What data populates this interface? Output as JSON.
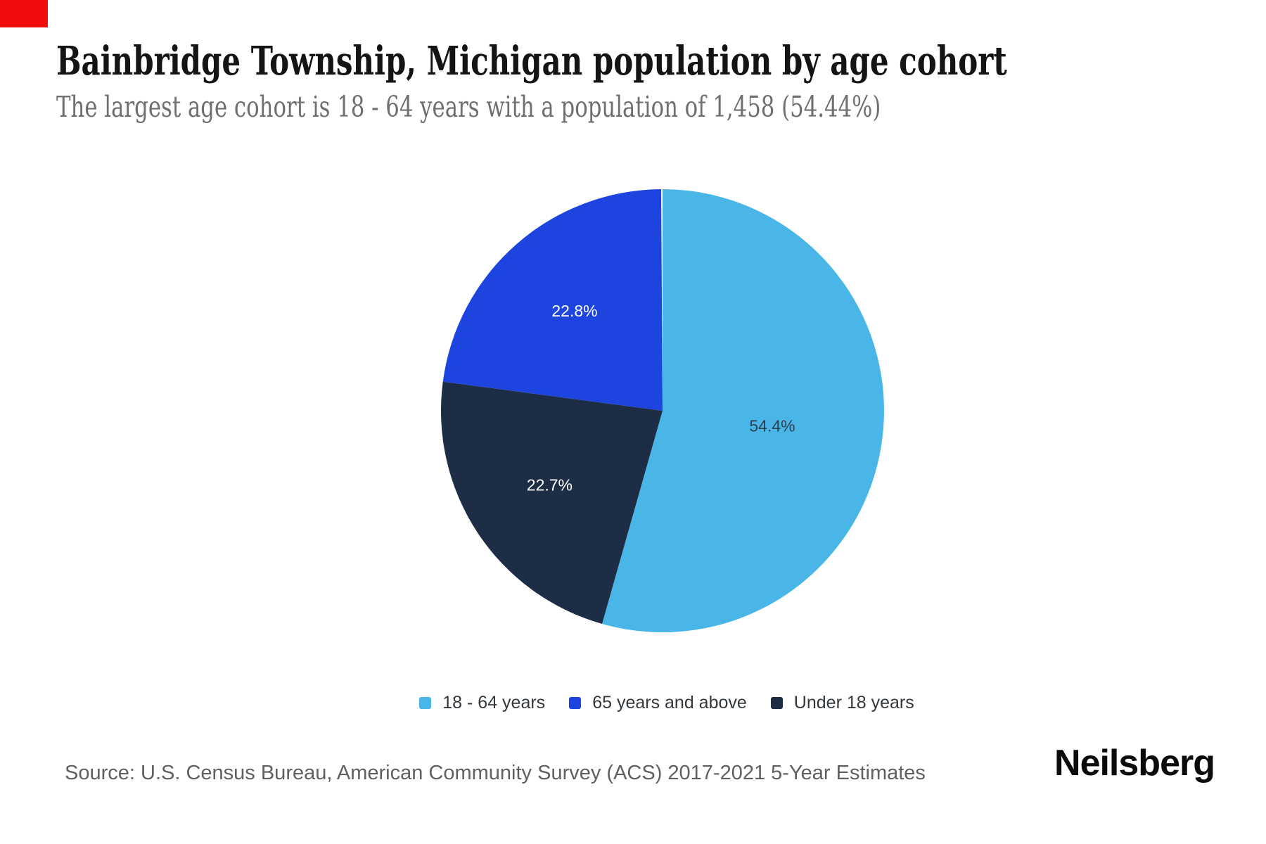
{
  "header": {
    "title": "Bainbridge Township, Michigan population by age cohort",
    "subtitle": "The largest age cohort is 18 - 64 years with a population of 1,458 (54.44%)"
  },
  "chart_data": {
    "type": "pie",
    "title": "Bainbridge Township, Michigan population by age cohort",
    "unit": "%",
    "start_angle_deg": 0,
    "direction": "clockwise",
    "slices": [
      {
        "name": "18 - 64 years",
        "value": 54.4,
        "label": "54.4%",
        "color": "#4ab6e8",
        "label_color": "#2b4055"
      },
      {
        "name": "Under 18 years",
        "value": 22.7,
        "label": "22.7%",
        "color": "#1c2d45",
        "label_color": "#ffffff"
      },
      {
        "name": "65 years and above",
        "value": 22.8,
        "label": "22.8%",
        "color": "#1e44e0",
        "label_color": "#ffffff"
      }
    ],
    "legend_order": [
      "18 - 64 years",
      "65 years and above",
      "Under 18 years"
    ],
    "legend_position": "bottom-center",
    "largest_cohort": {
      "name": "18 - 64 years",
      "population": "1,458",
      "share": "54.44%"
    }
  },
  "footer": {
    "source": "Source: U.S. Census Bureau, American Community Survey (ACS) 2017-2021 5-Year Estimates",
    "brand": "Neilsberg"
  },
  "decorations": {
    "corner_marker_color": "#f20d0d"
  }
}
